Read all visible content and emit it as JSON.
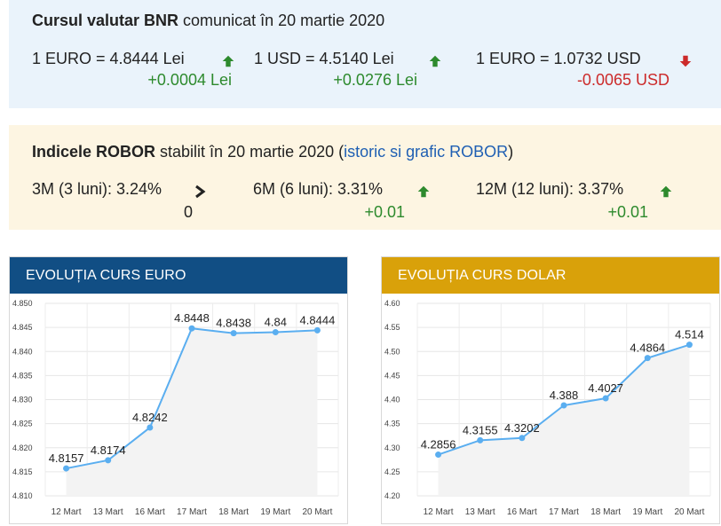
{
  "bnr": {
    "title_bold": "Cursul valutar BNR",
    "title_rest": " comunicat în 20 martie 2020",
    "rates": [
      {
        "label": "1 EURO = 4.8444 Lei",
        "delta": "+0.0004 Lei",
        "trend": "up"
      },
      {
        "label": "1 USD = 4.5140 Lei",
        "delta": "+0.0276 Lei",
        "trend": "up"
      },
      {
        "label": "1 EURO = 1.0732 USD",
        "delta": "-0.0065 USD",
        "trend": "down"
      }
    ]
  },
  "robor": {
    "title_bold": "Indicele ROBOR",
    "title_rest": " stabilit în 20 martie 2020 (",
    "title_link": "istoric si grafic ROBOR",
    "title_end": ")",
    "rates": [
      {
        "label": "3M (3 luni): 3.24%",
        "delta": "0",
        "trend": "right"
      },
      {
        "label": "6M (6 luni): 3.31%",
        "delta": "+0.01",
        "trend": "up"
      },
      {
        "label": "12M (12 luni): 3.37%",
        "delta": "+0.01",
        "trend": "up"
      }
    ]
  },
  "colors": {
    "up": "#2d8a2d",
    "down": "#cc2a2a",
    "euro_header": "#114e84",
    "usd_header": "#d9a10a",
    "line": "#5aaef0"
  },
  "chart_data": [
    {
      "type": "line",
      "title": "EVOLUȚIA CURS EURO",
      "categories": [
        "12 Mart",
        "13 Mart",
        "16 Mart",
        "17 Mart",
        "18 Mart",
        "19 Mart",
        "20 Mart"
      ],
      "values": [
        4.8157,
        4.8174,
        4.8242,
        4.8448,
        4.8438,
        4.844,
        4.8444
      ],
      "data_labels": [
        "4.8157",
        "4.8174",
        "4.8242",
        "4.8448",
        "4.8438",
        "4.84",
        "4.8444"
      ],
      "yticks": [
        "4.810",
        "4.815",
        "4.820",
        "4.825",
        "4.830",
        "4.835",
        "4.840",
        "4.845",
        "4.850"
      ],
      "ylim": [
        4.81,
        4.85
      ],
      "grid": true
    },
    {
      "type": "line",
      "title": "EVOLUȚIA CURS DOLAR",
      "categories": [
        "12 Mart",
        "13 Mart",
        "16 Mart",
        "17 Mart",
        "18 Mart",
        "19 Mart",
        "20 Mart"
      ],
      "values": [
        4.2856,
        4.3155,
        4.3202,
        4.388,
        4.4027,
        4.4864,
        4.514
      ],
      "data_labels": [
        "4.2856",
        "4.3155",
        "4.3202",
        "4.388",
        "4.4027",
        "4.4864",
        "4.514"
      ],
      "yticks": [
        "4.20",
        "4.25",
        "4.30",
        "4.35",
        "4.40",
        "4.45",
        "4.50",
        "4.55",
        "4.60"
      ],
      "ylim": [
        4.2,
        4.6
      ],
      "grid": true
    }
  ]
}
